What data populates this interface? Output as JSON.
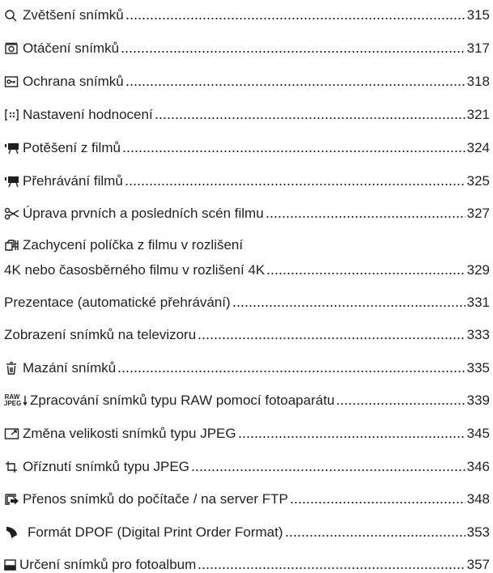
{
  "toc": {
    "entries": [
      {
        "text": "Zvětšení snímků",
        "page": "315"
      },
      {
        "text": "Otáčení snímků",
        "page": "317"
      },
      {
        "text": "Ochrana snímků",
        "page": "318"
      },
      {
        "text": "Nastavení hodnocení",
        "page": "321"
      },
      {
        "text": "Potěšení z filmů",
        "page": "324"
      },
      {
        "text": "Přehrávání filmů",
        "page": "325"
      },
      {
        "text": "Úprava prvních a posledních scén filmu",
        "page": "327"
      },
      {
        "text": "Zachycení políčka z filmu v rozlišení",
        "continuation": "4K nebo časosběrného filmu v rozlišení 4K",
        "page": "329"
      },
      {
        "text": "Prezentace (automatické přehrávání)",
        "page": "331"
      },
      {
        "text": "Zobrazení snímků na televizoru",
        "page": "333"
      },
      {
        "text": "Mazání snímků",
        "page": "335"
      },
      {
        "text": "Zpracování snímků typu RAW pomocí fotoaparátu",
        "page": "339",
        "icon_text": [
          "RAW",
          "JPEG"
        ]
      },
      {
        "text": "Změna velikosti snímků typu JPEG",
        "page": "345"
      },
      {
        "text": "Oříznutí snímků typu JPEG",
        "page": "346"
      },
      {
        "text": "Přenos snímků do počítače / na server FTP",
        "page": "348"
      },
      {
        "text": "Formát DPOF (Digital Print Order Format)",
        "page": "353"
      },
      {
        "text": "Určení snímků pro fotoalbum",
        "page": "357"
      }
    ]
  }
}
